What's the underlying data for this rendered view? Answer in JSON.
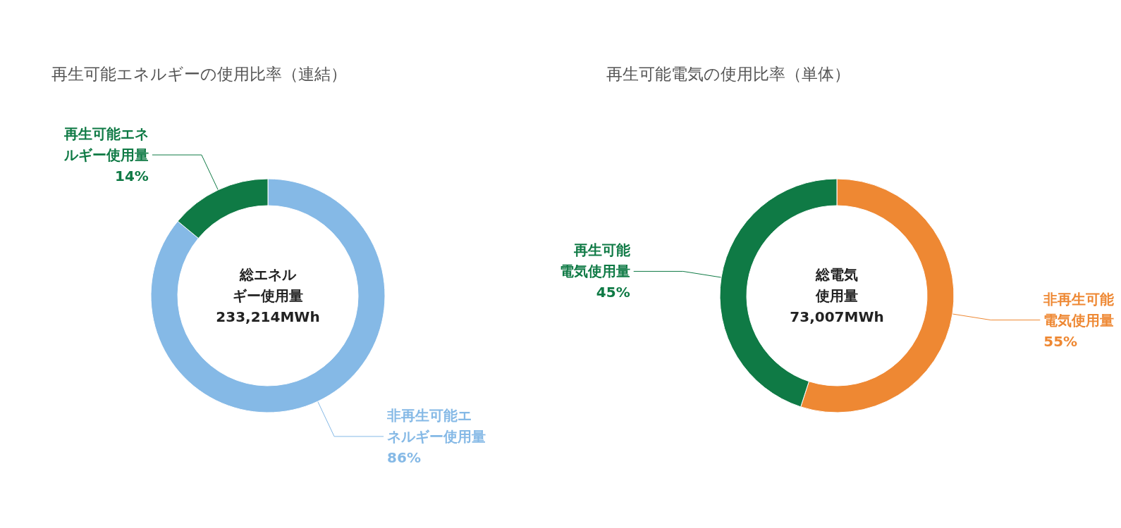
{
  "chart_data": [
    {
      "type": "donut",
      "title": "再生可能エネルギーの使用比率（連結）",
      "categories": [
        "非再生可能エネルギー使用量",
        "再生可能エネルギー使用量"
      ],
      "values": [
        86,
        14
      ],
      "value_labels": [
        "86%",
        "14%"
      ],
      "colors": [
        "#85b9e6",
        "#0f7a45"
      ],
      "annotations": [
        "総エネルギー使用量",
        "233,214MWh"
      ]
    },
    {
      "type": "donut",
      "title": "再生可能電気の使用比率（単体）",
      "categories": [
        "非再生可能電気使用量",
        "再生可能電気使用量"
      ],
      "values": [
        55,
        45
      ],
      "value_labels": [
        "55%",
        "45%"
      ],
      "colors": [
        "#ee8833",
        "#0f7a45"
      ],
      "annotations": [
        "総電気使用量",
        "73,007MWh"
      ]
    }
  ]
}
